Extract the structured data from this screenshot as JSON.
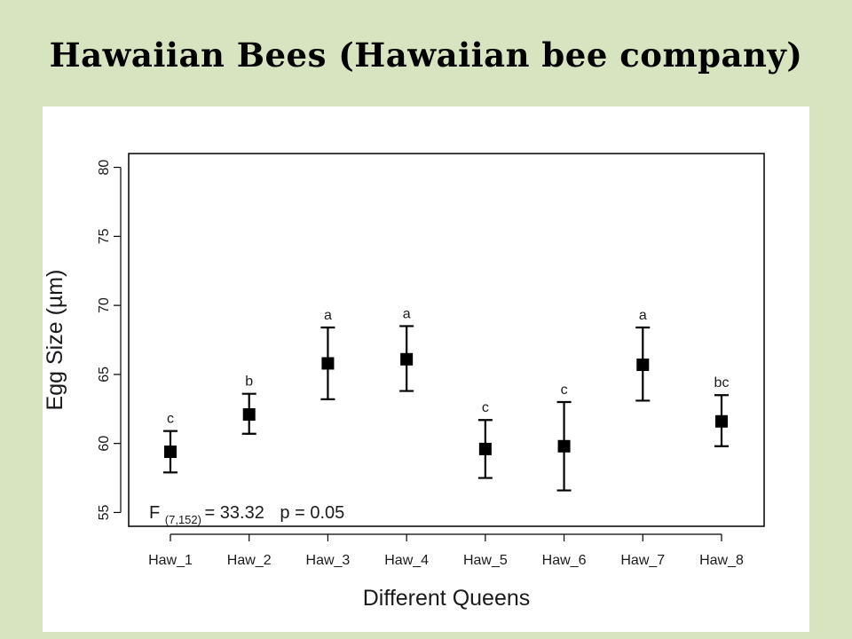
{
  "slide": {
    "title": "Hawaiian Bees (Hawaiian bee company)"
  },
  "chart_data": {
    "type": "scatter",
    "xlabel": "Different Queens",
    "ylabel": "Egg Size (µm)",
    "categories": [
      "Haw_1",
      "Haw_2",
      "Haw_3",
      "Haw_4",
      "Haw_5",
      "Haw_6",
      "Haw_7",
      "Haw_8"
    ],
    "means": [
      59.4,
      62.1,
      65.8,
      66.1,
      59.6,
      59.8,
      65.7,
      61.6
    ],
    "lower": [
      57.9,
      60.7,
      63.2,
      63.8,
      57.5,
      56.6,
      63.1,
      59.8
    ],
    "upper": [
      60.9,
      63.6,
      68.4,
      68.5,
      61.7,
      63.0,
      68.4,
      63.5
    ],
    "significance_letters": [
      "c",
      "b",
      "a",
      "a",
      "c",
      "c",
      "a",
      "bc"
    ],
    "yticks": [
      55,
      60,
      65,
      70,
      75,
      80
    ],
    "ylim": [
      54,
      81
    ],
    "marker_color": "#000000",
    "annotation": {
      "f_label": "F",
      "f_subscript": "(7,152)",
      "f_value": "= 33.32",
      "p_value": "p = 0.05"
    }
  }
}
